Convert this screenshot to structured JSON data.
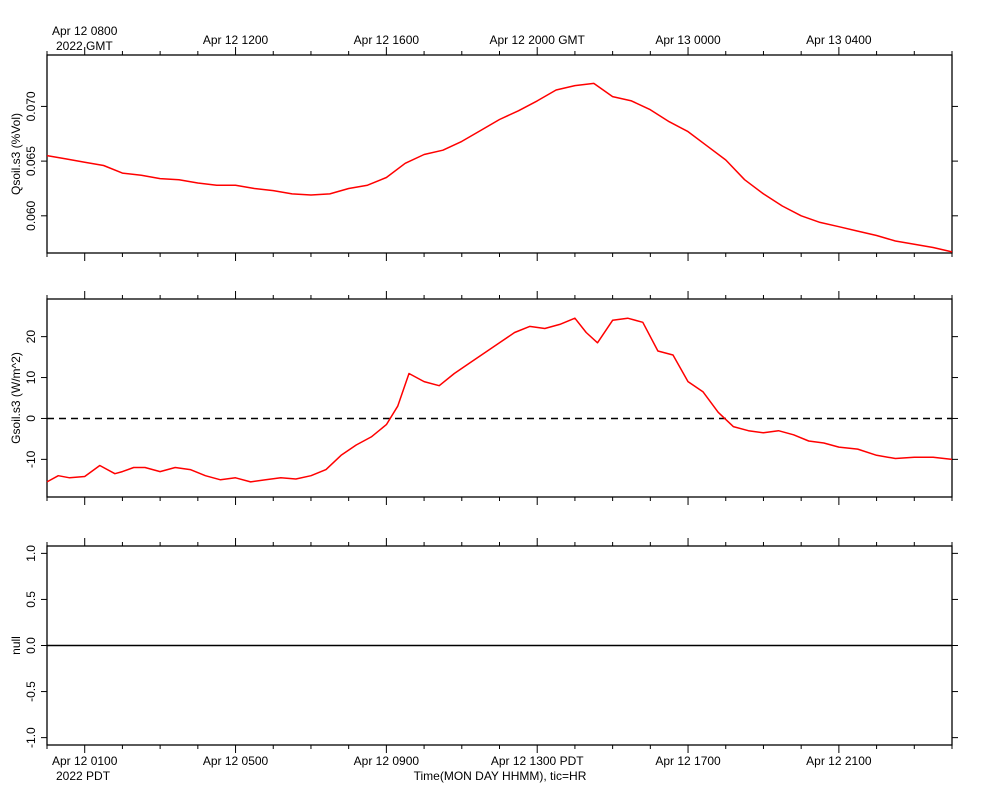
{
  "top_axis": {
    "labels": [
      "Apr 12 0800",
      "Apr 12 1200",
      "Apr 12 1600",
      "Apr 12 2000 GMT",
      "Apr 13 0000",
      "Apr 13 0400"
    ],
    "year_label": "2022 GMT"
  },
  "bottom_axis": {
    "labels": [
      "Apr 12 0100",
      "Apr 12 0500",
      "Apr 12 0900",
      "Apr 12 1300 PDT",
      "Apr 12 1700",
      "Apr 12 2100"
    ],
    "year_label": "2022 PDT",
    "title": "Time(MON DAY HHMM), tic=HR"
  },
  "colors": {
    "series": "#ff0000",
    "axes": "#000000",
    "reference": "#000000"
  },
  "chart_data": [
    {
      "type": "line",
      "ylabel": "Qsoil.s3 (%Vol)",
      "x_units": "hours since Apr 12 0000 PDT",
      "xlim": [
        0,
        24
      ],
      "ylim": [
        0.0566,
        0.0747
      ],
      "yticks": [
        0.06,
        0.065,
        0.07
      ],
      "ytick_labels": [
        "0.060",
        "0.065",
        "0.070"
      ],
      "series": [
        {
          "color": "#ff0000",
          "x": [
            0,
            0.5,
            1,
            1.5,
            2,
            2.5,
            3,
            3.5,
            4,
            4.5,
            5,
            5.5,
            6,
            6.5,
            7,
            7.5,
            8,
            8.5,
            9,
            9.5,
            10,
            10.5,
            11,
            11.5,
            12,
            12.5,
            13,
            13.5,
            14,
            14.5,
            15,
            15.5,
            16,
            16.5,
            17,
            17.5,
            18,
            18.5,
            19,
            19.5,
            20,
            20.5,
            21,
            21.5,
            22,
            22.5,
            23,
            23.5,
            24
          ],
          "values": [
            0.0655,
            0.0652,
            0.0649,
            0.0646,
            0.0639,
            0.0637,
            0.0634,
            0.0633,
            0.063,
            0.0628,
            0.0628,
            0.0625,
            0.0623,
            0.062,
            0.0619,
            0.062,
            0.0625,
            0.0628,
            0.0635,
            0.0648,
            0.0656,
            0.066,
            0.0668,
            0.0678,
            0.0688,
            0.0696,
            0.0705,
            0.0715,
            0.0719,
            0.0721,
            0.0709,
            0.0705,
            0.0697,
            0.0686,
            0.0677,
            0.0664,
            0.0651,
            0.0633,
            0.062,
            0.0609,
            0.06,
            0.0594,
            0.059,
            0.0586,
            0.0582,
            0.0577,
            0.0574,
            0.0571,
            0.0567
          ]
        }
      ]
    },
    {
      "type": "line",
      "ylabel": "Gsoil.s3 (W/m^2)",
      "x_units": "hours since Apr 12 0000 PDT",
      "xlim": [
        0,
        24
      ],
      "ylim": [
        -19.2,
        29.2
      ],
      "yticks": [
        -10,
        0,
        10,
        20
      ],
      "ytick_labels": [
        "-10",
        "0",
        "10",
        "20"
      ],
      "reference_line": {
        "y": 0,
        "style": "dashed"
      },
      "series": [
        {
          "color": "#ff0000",
          "x": [
            0,
            0.3,
            0.6,
            1.0,
            1.4,
            1.8,
            2.0,
            2.3,
            2.6,
            3.0,
            3.4,
            3.8,
            4.2,
            4.6,
            5.0,
            5.4,
            5.8,
            6.2,
            6.6,
            7.0,
            7.4,
            7.8,
            8.2,
            8.6,
            9.0,
            9.3,
            9.6,
            10.0,
            10.4,
            10.8,
            11.2,
            11.6,
            12.0,
            12.4,
            12.8,
            13.2,
            13.6,
            14.0,
            14.3,
            14.6,
            15.0,
            15.4,
            15.8,
            16.2,
            16.6,
            17.0,
            17.4,
            17.8,
            18.2,
            18.6,
            19.0,
            19.4,
            19.8,
            20.2,
            20.6,
            21.0,
            21.5,
            22.0,
            22.5,
            23.0,
            23.5,
            24.0
          ],
          "values": [
            -15.5,
            -14.0,
            -14.5,
            -14.2,
            -11.5,
            -13.5,
            -13.0,
            -12.0,
            -12.0,
            -13.0,
            -12.0,
            -12.5,
            -14.0,
            -15.0,
            -14.5,
            -15.5,
            -15.0,
            -14.5,
            -14.8,
            -14.0,
            -12.5,
            -9.0,
            -6.5,
            -4.5,
            -1.5,
            3.0,
            11.0,
            9.0,
            8.0,
            11.0,
            13.5,
            16.0,
            18.5,
            21.0,
            22.5,
            22.0,
            23.0,
            24.5,
            21.0,
            18.5,
            24.0,
            24.5,
            23.5,
            16.5,
            15.5,
            9.0,
            6.5,
            1.5,
            -2.0,
            -3.0,
            -3.5,
            -3.0,
            -4.0,
            -5.5,
            -6.0,
            -7.0,
            -7.5,
            -9.0,
            -9.8,
            -9.5,
            -9.5,
            -10.0
          ]
        }
      ]
    },
    {
      "type": "line",
      "ylabel": "null",
      "x_units": "hours since Apr 12 0000 PDT",
      "xlim": [
        0,
        24
      ],
      "ylim": [
        -1.08,
        1.08
      ],
      "yticks": [
        -1.0,
        -0.5,
        0.0,
        0.5,
        1.0
      ],
      "ytick_labels": [
        "-1.0",
        "-0.5",
        "0.0",
        "0.5",
        "1.0"
      ],
      "series": [
        {
          "color": "#000000",
          "x": [
            0,
            24
          ],
          "values": [
            0,
            0
          ]
        }
      ]
    }
  ]
}
